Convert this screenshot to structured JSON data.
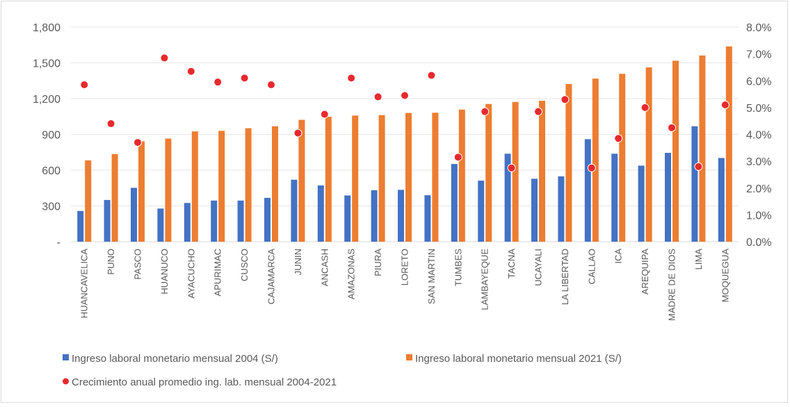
{
  "chart_data": {
    "type": "bar",
    "categories": [
      "HUANCAVELICA",
      "PUNO",
      "PASCO",
      "HUANUCO",
      "AYACUCHO",
      "APURIMAC",
      "CUSCO",
      "CAJAMARCA",
      "JUNIN",
      "ANCASH",
      "AMAZONAS",
      "PIURA",
      "LORETO",
      "SAN MARTIN",
      "TUMBES",
      "LAMBAYEQUE",
      "TACNA",
      "UCAYALI",
      "LA LIBERTAD",
      "CALLAO",
      "ICA",
      "AREQUIPA",
      "MADRE DE DIOS",
      "LIMA",
      "MOQUEGUA"
    ],
    "series": [
      {
        "name": "Ingreso laboral monetario mensual 2004 (S/)",
        "type": "bar",
        "axis": "left",
        "color": "#4472c4",
        "values": [
          258,
          350,
          452,
          278,
          325,
          345,
          345,
          368,
          520,
          472,
          388,
          432,
          435,
          390,
          652,
          512,
          738,
          528,
          548,
          860,
          738,
          638,
          745,
          968,
          702
        ]
      },
      {
        "name": "Ingreso laboral monetario mensual 2021 (S/)",
        "type": "bar",
        "axis": "left",
        "color": "#ed7d31",
        "values": [
          682,
          735,
          842,
          865,
          925,
          930,
          952,
          968,
          1022,
          1048,
          1058,
          1062,
          1080,
          1082,
          1108,
          1155,
          1172,
          1182,
          1322,
          1368,
          1408,
          1462,
          1518,
          1562,
          1638
        ]
      },
      {
        "name": "Crecimiento anual promedio ing. lab. mensual 2004-2021",
        "type": "scatter",
        "axis": "right",
        "color": "#e8292d",
        "values": [
          5.85,
          4.4,
          3.7,
          6.85,
          6.35,
          5.95,
          6.1,
          5.85,
          4.05,
          4.75,
          6.1,
          5.4,
          5.45,
          6.2,
          3.15,
          4.85,
          2.75,
          4.85,
          5.3,
          2.75,
          3.85,
          5.0,
          4.25,
          2.8,
          5.1
        ]
      }
    ],
    "left_axis": {
      "min": 0,
      "max": 1800,
      "ticks": [
        0,
        300,
        600,
        900,
        1200,
        1500,
        1800
      ],
      "tick_labels": [
        "-",
        "300",
        "600",
        "900",
        "1,200",
        "1,500",
        "1,800"
      ]
    },
    "right_axis": {
      "min": 0,
      "max": 8,
      "ticks": [
        0,
        1,
        2,
        3,
        4,
        5,
        6,
        7,
        8
      ],
      "tick_labels": [
        "0.0%",
        "1.0%",
        "2.0%",
        "3.0%",
        "4.0%",
        "5.0%",
        "6.0%",
        "7.0%",
        "8.0%"
      ]
    },
    "grid": true,
    "legend_position": "bottom"
  }
}
